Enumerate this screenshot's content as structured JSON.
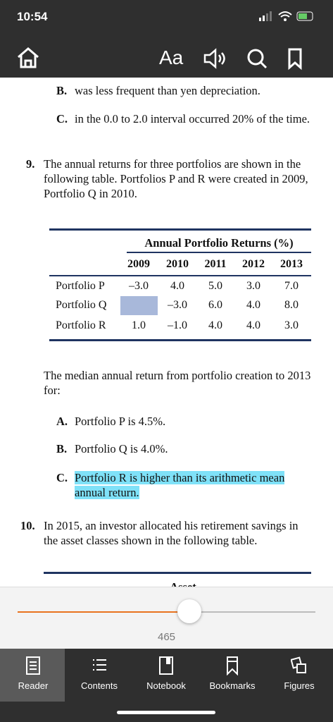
{
  "status_bar": {
    "time": "10:54"
  },
  "toolbar": {
    "font_button": "Aa"
  },
  "content": {
    "prev_options": [
      {
        "letter": "B.",
        "text": "was less frequent than yen depreciation."
      },
      {
        "letter": "C.",
        "text": "in the 0.0 to 2.0 interval occurred 20% of the time."
      }
    ],
    "q9": {
      "number": "9.",
      "text": "The annual returns for three portfolios are shown in the following table. Portfolios P and R were created in 2009, Portfolio Q in 2010.",
      "table": {
        "title": "Annual Portfolio Returns (%)",
        "columns": [
          "2009",
          "2010",
          "2011",
          "2012",
          "2013"
        ],
        "rows": [
          [
            "Portfolio P",
            "–3.0",
            "4.0",
            "5.0",
            "3.0",
            "7.0"
          ],
          [
            "Portfolio Q",
            null,
            "–3.0",
            "6.0",
            "4.0",
            "8.0"
          ],
          [
            "Portfolio R",
            "1.0",
            "–1.0",
            "4.0",
            "4.0",
            "3.0"
          ]
        ]
      },
      "stem": "The median annual return from portfolio creation to 2013 for:",
      "options": [
        {
          "letter": "A.",
          "text": "Portfolio P is 4.5%."
        },
        {
          "letter": "B.",
          "text": "Portfolio Q is 4.0%."
        },
        {
          "letter": "C.",
          "text": "Portfolio R is higher than its arithmetic mean annual return."
        }
      ]
    },
    "q10": {
      "number": "10.",
      "text": "In 2015, an investor allocated his retirement savings in the asset classes shown in the following table.",
      "table_heading": "Asset"
    }
  },
  "slider": {
    "page": "465"
  },
  "tabs": [
    "Reader",
    "Contents",
    "Notebook",
    "Bookmarks",
    "Figures"
  ]
}
